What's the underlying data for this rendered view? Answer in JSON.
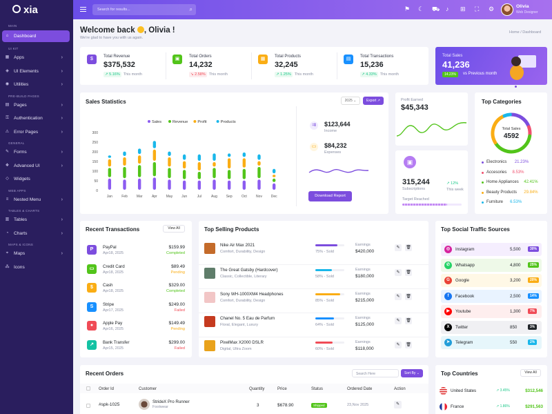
{
  "sidebar": {
    "brand": "xia",
    "sections": {
      "main": "MAIN",
      "ui": "UI KIT",
      "pre": "PRE-BUILD PAGES",
      "general": "GENERAL",
      "web": "WEB APPS",
      "tables": "TABLES & CHARTS",
      "maps": "MAPS & ICONS"
    },
    "items": {
      "dashboard": "Dashboard",
      "apps": "Apps",
      "ui_elements": "UI Elements",
      "utilities": "Utilities",
      "pages": "Pages",
      "authentication": "Authentication",
      "error_pages": "Error Pages",
      "forms": "Forms",
      "advanced_ui": "Advanced UI",
      "widgets": "Widgets",
      "nested_menu": "Nested Menu",
      "tables": "Tables",
      "charts": "Charts",
      "maps": "Maps",
      "icons": "Icons"
    }
  },
  "topbar": {
    "search_placeholder": "Search for results...",
    "user_name": "Olivia",
    "user_role": "Web Designer"
  },
  "header": {
    "welcome_a": "Welcome back",
    "welcome_b": ", Olivia !",
    "subtitle": "We're glad to have you with us again.",
    "crumb_home": "Home",
    "crumb_sep": "/",
    "crumb_page": "Dashboard"
  },
  "stats": [
    {
      "label": "Total Revenue",
      "value": "$375,532",
      "change": "5.16%",
      "period": "This month",
      "dir": "up",
      "color": "#7c4dde",
      "icon": "$"
    },
    {
      "label": "Total Orders",
      "value": "14,232",
      "change": "2.58%",
      "period": "This month",
      "dir": "down",
      "color": "#52c41a",
      "icon": "▣"
    },
    {
      "label": "Total Products",
      "value": "32,245",
      "change": "1.25%",
      "period": "This month",
      "dir": "up",
      "color": "#faad14",
      "icon": "▦"
    },
    {
      "label": "Total Transactions",
      "value": "15,236",
      "change": "4.33%",
      "period": "This month",
      "dir": "up",
      "color": "#1890ff",
      "icon": "▤"
    }
  ],
  "sales_card": {
    "label": "Total Sales",
    "value": "41,236",
    "badge": "14.23%",
    "text": "vs Previous month"
  },
  "sales_stats": {
    "title": "Sales Statistics",
    "year": "2025",
    "export": "Export",
    "income_value": "$123,644",
    "income_label": "Income",
    "expense_value": "$84,232",
    "expense_label": "Expenses",
    "download": "Download Report"
  },
  "chart_data": {
    "type": "bar",
    "categories": [
      "Jan",
      "Feb",
      "Mar",
      "Apr",
      "May",
      "Jun",
      "Jul",
      "Aug",
      "Sep",
      "Oct",
      "Nov",
      "Dec"
    ],
    "ylim": [
      0,
      300
    ],
    "yticks": [
      0,
      50,
      100,
      150,
      200,
      250,
      300
    ],
    "series": [
      {
        "name": "Sales",
        "color": "#8c5cf0",
        "values": [
          65,
          60,
          65,
          70,
          60,
          55,
          55,
          60,
          55,
          55,
          60,
          40
        ]
      },
      {
        "name": "Revenue",
        "color": "#52c41a",
        "values": [
          55,
          65,
          70,
          80,
          60,
          55,
          45,
          60,
          55,
          60,
          65,
          25
        ]
      },
      {
        "name": "Profit",
        "color": "#faad14",
        "values": [
          45,
          50,
          50,
          65,
          55,
          45,
          50,
          30,
          60,
          55,
          30,
          20
        ]
      },
      {
        "name": "Products",
        "color": "#1ab7ea",
        "values": [
          20,
          30,
          35,
          45,
          30,
          35,
          40,
          45,
          25,
          30,
          35,
          30
        ]
      }
    ]
  },
  "profit": {
    "label": "Profit Earned",
    "value": "$45,343"
  },
  "subs": {
    "value": "315,244",
    "label": "Subscriptions",
    "change": "12%",
    "period": "This week",
    "target": "Target Reached"
  },
  "categories": {
    "title": "Top Categories",
    "center_label": "Total Sales",
    "center_value": "4592",
    "items": [
      {
        "name": "Electronics",
        "pct": "21.23%",
        "value": 21.23,
        "color": "#7c4dde"
      },
      {
        "name": "Accesories",
        "pct": "8.53%",
        "value": 8.53,
        "color": "#f0506e"
      },
      {
        "name": "Home Appliances",
        "pct": "42.41%",
        "value": 42.41,
        "color": "#52c41a"
      },
      {
        "name": "Beauty Products",
        "pct": "29.84%",
        "value": 29.84,
        "color": "#faad14"
      },
      {
        "name": "Furniture",
        "pct": "6.53%",
        "value": 6.53,
        "color": "#1ab7ea"
      }
    ]
  },
  "transactions": {
    "title": "Recent Transactions",
    "view_all": "View All",
    "items": [
      {
        "name": "PayPal",
        "date": "Apr18, 2025",
        "amount": "$159.99",
        "status": "Completed",
        "color": "#7c4dde",
        "icon": "P"
      },
      {
        "name": "Credit Card",
        "date": "Apr18, 2025",
        "amount": "$89.49",
        "status": "Pending",
        "color": "#52c41a",
        "icon": "▭"
      },
      {
        "name": "Cash",
        "date": "Apr18, 2025",
        "amount": "$329.00",
        "status": "Completed",
        "color": "#faad14",
        "icon": "$"
      },
      {
        "name": "Stripe",
        "date": "Apr17, 2025",
        "amount": "$249.00",
        "status": "Failed",
        "color": "#1890ff",
        "icon": "S"
      },
      {
        "name": "Apple Pay",
        "date": "Apr16, 2025",
        "amount": "$149.49",
        "status": "Pending",
        "color": "#f04b56",
        "icon": "●"
      },
      {
        "name": "Bank Transfer",
        "date": "Apr15, 2025",
        "amount": "$299.00",
        "status": "Failed",
        "color": "#13c2a3",
        "icon": "↗"
      }
    ]
  },
  "products": {
    "title": "Top Selling Products",
    "earnings_label": "Earnings",
    "items": [
      {
        "name": "Nike Air Max 2021",
        "tags": "Comfort, Durability, Design",
        "pct": "75% - Sold",
        "value": 75,
        "bar": "#7c4dde",
        "earn": "$420,000",
        "img": "#c46b2a"
      },
      {
        "name": "The Great Gatsby (Hardcover)",
        "tags": "Classic, Collectible, Literary",
        "pct": "58% - Sold",
        "value": 58,
        "bar": "#1ab7ea",
        "earn": "$180,000",
        "img": "#5f7d6a"
      },
      {
        "name": "Sony WH-1000XM4 Headphones",
        "tags": "Comfort, Durability, Design",
        "pct": "85% - Sold",
        "value": 85,
        "bar": "#faad14",
        "earn": "$215,000",
        "img": "#f2c6c6"
      },
      {
        "name": "Chanel No. 5 Eau de Parfum",
        "tags": "Floral, Elegant, Luxury",
        "pct": "64% - Sold",
        "value": 64,
        "bar": "#1890ff",
        "earn": "$125,000",
        "img": "#c53a1f"
      },
      {
        "name": "PixelMax X2000 DSLR",
        "tags": "Digital, Ultra Zoom",
        "pct": "60% - Sold",
        "value": 60,
        "bar": "#f04b56",
        "earn": "$118,000",
        "img": "#e9a21b"
      }
    ]
  },
  "social": {
    "title": "Top Social Traffic Sources",
    "items": [
      {
        "name": "Instagram",
        "value": "5,500",
        "pct": "30%",
        "bg": "#f5eefe",
        "badge": "#7c4dde",
        "icon": "◎",
        "ic": "#d6249f"
      },
      {
        "name": "Whatsapp",
        "value": "4,800",
        "pct": "25%",
        "bg": "#eef9e8",
        "badge": "#52c41a",
        "icon": "✆",
        "ic": "#25d366"
      },
      {
        "name": "Google",
        "value": "3,200",
        "pct": "20%",
        "bg": "#fff8e6",
        "badge": "#faad14",
        "icon": "G",
        "ic": "#ea4335"
      },
      {
        "name": "Facebook",
        "value": "2,500",
        "pct": "14%",
        "bg": "#e9f3ff",
        "badge": "#1890ff",
        "icon": "f",
        "ic": "#1877f2"
      },
      {
        "name": "Youtube",
        "value": "1,300",
        "pct": "7%",
        "bg": "#feeeee",
        "badge": "#f04b56",
        "icon": "▶",
        "ic": "#ff0000"
      },
      {
        "name": "Twitter",
        "value": "850",
        "pct": "3%",
        "bg": "#f0f0f3",
        "badge": "#212529",
        "icon": "X",
        "ic": "#000000"
      },
      {
        "name": "Telegram",
        "value": "550",
        "pct": "2%",
        "bg": "#e6f6fb",
        "badge": "#1ab7ea",
        "icon": "➤",
        "ic": "#229ed9"
      }
    ]
  },
  "orders": {
    "title": "Recent Orders",
    "search_placeholder": "Search Here",
    "sort": "Sort By",
    "cols": [
      "Order Id",
      "Customer",
      "Quantity",
      "Price",
      "Status",
      "Ordered Date",
      "Action"
    ],
    "row": {
      "id": "#spk-1025",
      "product": "StrideX Pro Runner",
      "category": "Footwear",
      "qty": "3",
      "price": "$678.90",
      "status": "Shipped",
      "date": "23,Nov 2025"
    }
  },
  "countries": {
    "title": "Top Countries",
    "view_all": "View All",
    "items": [
      {
        "name": "United States",
        "change": "3.45%",
        "dir": "up",
        "value": "$312,546",
        "flag": "us"
      },
      {
        "name": "France",
        "change": "1.86%",
        "dir": "up",
        "value": "$291,563",
        "flag": "fr"
      }
    ]
  }
}
